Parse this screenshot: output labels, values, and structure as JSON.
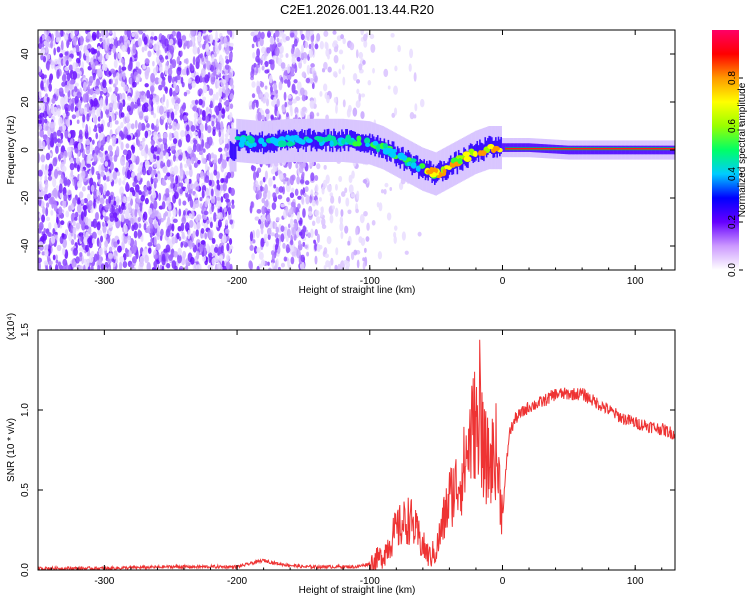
{
  "title": "C2E1.2026.001.13.44.R20",
  "chart_data": [
    {
      "type": "heatmap",
      "name": "spectrogram",
      "xlabel": "Height of straight line (km)",
      "ylabel": "Frequency (Hz)",
      "xlim": [
        -350,
        130
      ],
      "ylim": [
        -50,
        50
      ],
      "xticks": [
        -300,
        -200,
        -100,
        0,
        100
      ],
      "yticks": [
        -40,
        -20,
        0,
        20,
        40
      ],
      "colorbar": {
        "label": "Normalized spectral amplitude",
        "range": [
          0,
          1
        ],
        "ticks": [
          "0.0",
          "0.2",
          "0.4",
          "0.6",
          "0.8"
        ],
        "stops": [
          "#ffffff",
          "#cc99ff",
          "#6600ff",
          "#0000ff",
          "#00ccff",
          "#00ff66",
          "#99ff00",
          "#ffff00",
          "#ff9900",
          "#ff0000",
          "#ff0066"
        ]
      },
      "ridge": {
        "x": [
          -200,
          -180,
          -160,
          -140,
          -120,
          -100,
          -90,
          -80,
          -70,
          -60,
          -50,
          -40,
          -30,
          -20,
          -10,
          0,
          20,
          50,
          80,
          100,
          130
        ],
        "y": [
          4,
          3,
          4,
          4,
          4,
          3,
          1,
          -2,
          -5,
          -8,
          -10,
          -7,
          -4,
          -1,
          1,
          1,
          1,
          0,
          0,
          0,
          0
        ]
      }
    },
    {
      "type": "line",
      "name": "snr",
      "xlabel": "Height of straight line (km)",
      "ylabel": "SNR (10 * v/v)",
      "multiplier": "(x10⁴)",
      "xlim": [
        -350,
        130
      ],
      "ylim": [
        0,
        1.5
      ],
      "xticks": [
        -300,
        -200,
        -100,
        0,
        100
      ],
      "yticks": [
        "0.0",
        "0.5",
        "1.0",
        "1.5"
      ],
      "color": "#ee3333",
      "x": [
        -350,
        -300,
        -250,
        -200,
        -180,
        -170,
        -150,
        -130,
        -110,
        -100,
        -90,
        -80,
        -70,
        -60,
        -55,
        -50,
        -40,
        -30,
        -25,
        -20,
        -17,
        -15,
        -10,
        -5,
        0,
        5,
        10,
        20,
        30,
        40,
        50,
        60,
        70,
        80,
        90,
        100,
        110,
        120,
        130
      ],
      "y": [
        0.01,
        0.01,
        0.02,
        0.02,
        0.06,
        0.04,
        0.02,
        0.02,
        0.02,
        0.04,
        0.09,
        0.25,
        0.32,
        0.15,
        0.08,
        0.12,
        0.45,
        0.6,
        0.8,
        0.95,
        1.0,
        0.75,
        0.65,
        0.75,
        0.35,
        0.85,
        0.95,
        1.02,
        1.05,
        1.1,
        1.1,
        1.1,
        1.05,
        1.0,
        0.95,
        0.92,
        0.9,
        0.88,
        0.85
      ]
    }
  ]
}
